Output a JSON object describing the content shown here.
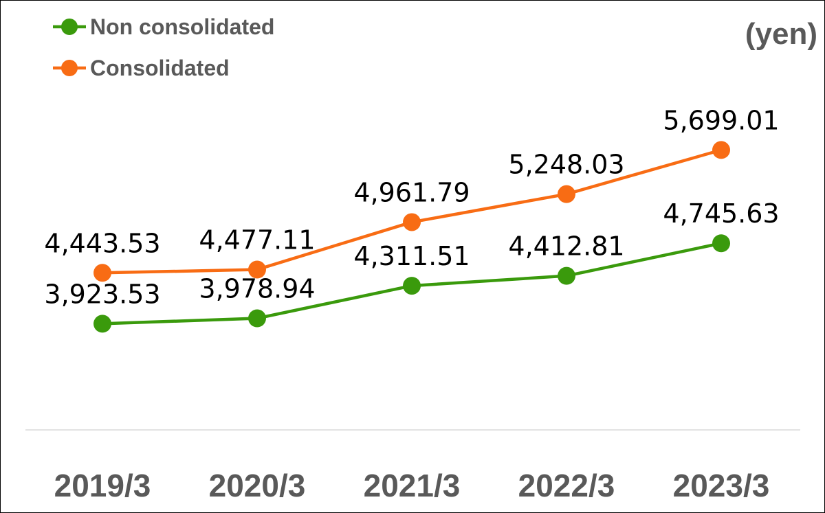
{
  "chart_data": {
    "type": "line",
    "categories": [
      "2019/3",
      "2020/3",
      "2021/3",
      "2022/3",
      "2023/3"
    ],
    "unit_label": "(yen)",
    "series": [
      {
        "name": "Non consolidated",
        "values": [
          3923.53,
          3978.94,
          4311.51,
          4412.81,
          4745.63
        ],
        "labels": [
          "3,923.53",
          "3,978.94",
          "4,311.51",
          "4,412.81",
          "4,745.63"
        ],
        "color": "#3a9a0c"
      },
      {
        "name": "Consolidated",
        "values": [
          4443.53,
          4477.11,
          4961.79,
          5248.03,
          5699.01
        ],
        "labels": [
          "4,443.53",
          "4,477.11",
          "4,961.79",
          "5,248.03",
          "5,699.01"
        ],
        "color": "#f86c14"
      }
    ],
    "legend_position": "top-left",
    "grid": false,
    "axis_line_color": "#d9d9d9",
    "text_color": "#595959"
  }
}
